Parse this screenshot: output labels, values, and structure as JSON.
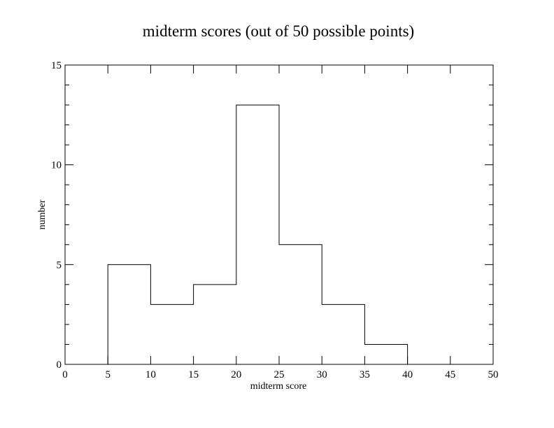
{
  "chart_data": {
    "type": "histogram",
    "title": "midterm scores (out of 50 possible points)",
    "xlabel": "midterm score",
    "ylabel": "number",
    "xlim": [
      0,
      50
    ],
    "ylim": [
      0,
      15
    ],
    "x_ticks": [
      0,
      5,
      10,
      15,
      20,
      25,
      30,
      35,
      40,
      45,
      50
    ],
    "y_ticks": [
      0,
      5,
      10,
      15
    ],
    "y_minor_step": 1,
    "bins": [
      {
        "start": 5,
        "end": 10,
        "count": 5
      },
      {
        "start": 10,
        "end": 15,
        "count": 3
      },
      {
        "start": 15,
        "end": 20,
        "count": 4
      },
      {
        "start": 20,
        "end": 25,
        "count": 13
      },
      {
        "start": 25,
        "end": 30,
        "count": 6
      },
      {
        "start": 30,
        "end": 35,
        "count": 3
      },
      {
        "start": 35,
        "end": 40,
        "count": 1
      }
    ],
    "grid": false,
    "legend": "none"
  }
}
